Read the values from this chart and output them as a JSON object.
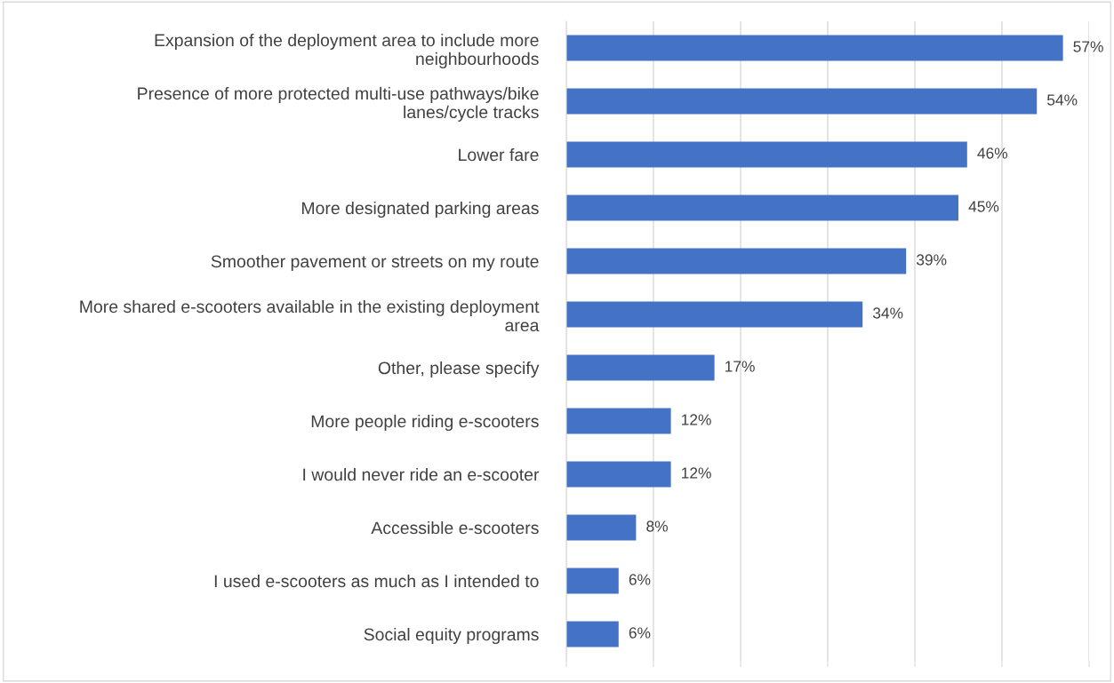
{
  "chart_data": {
    "type": "bar",
    "orientation": "horizontal",
    "categories": [
      "Expansion of the deployment area to include more\nneighbourhoods",
      "Presence of more protected multi-use pathways/bike\nlanes/cycle tracks",
      "Lower fare",
      "More designated parking areas",
      "Smoother pavement or streets on my route",
      "More shared e-scooters available in the existing deployment\narea",
      "Other, please specify",
      "More people riding e-scooters",
      "I would never ride an e-scooter",
      "Accessible e-scooters",
      "I used e-scooters as much as I intended to",
      "Social equity programs"
    ],
    "values": [
      57,
      54,
      46,
      45,
      39,
      34,
      17,
      12,
      12,
      8,
      6,
      6
    ],
    "value_labels": [
      "57%",
      "54%",
      "46%",
      "45%",
      "39%",
      "34%",
      "17%",
      "12%",
      "12%",
      "8%",
      "6%",
      "6%"
    ],
    "color": "#4472c4",
    "xlim": [
      0,
      60
    ],
    "xticks": [
      {
        "value": 0,
        "label": null
      },
      {
        "value": 10,
        "label": null
      },
      {
        "value": 20,
        "label": null
      },
      {
        "value": 30,
        "label": null
      },
      {
        "value": 40,
        "label": null
      },
      {
        "value": 50,
        "label": null
      },
      {
        "value": 60,
        "label": null
      }
    ],
    "tick_labels": "y",
    "grid": "x",
    "legend": false
  }
}
